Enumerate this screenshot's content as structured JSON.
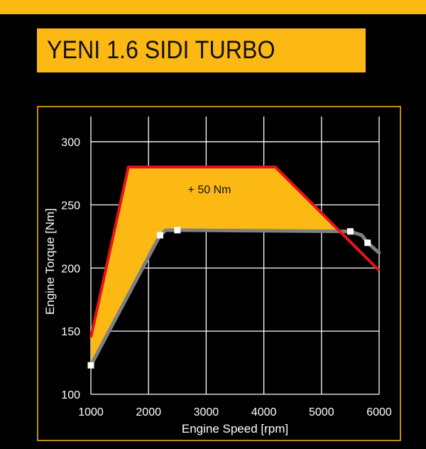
{
  "header": {
    "title": "YENI 1.6 SIDI TURBO"
  },
  "colors": {
    "background": "#000000",
    "accent": "#FDB913",
    "turbo_curve": "#E8121C",
    "base_curve": "#808080",
    "fill": "#FDB913",
    "grid": "#FFFFFF"
  },
  "chart_data": {
    "type": "line",
    "xlabel": "Engine Speed [rpm]",
    "ylabel": "Engine Torque [Nm]",
    "xlim": [
      1000,
      6000
    ],
    "ylim": [
      100,
      320
    ],
    "x_ticks": [
      "1000",
      "2000",
      "3000",
      "4000",
      "5000",
      "6000"
    ],
    "y_ticks": [
      "100",
      "150",
      "200",
      "250",
      "300"
    ],
    "grid": true,
    "annotation": "+ 50 Nm",
    "series": [
      {
        "color": "#E8121C",
        "x": [
          1000,
          1650,
          4200,
          6000
        ],
        "y": [
          145,
          280,
          280,
          198
        ]
      },
      {
        "color": "#808080",
        "markers": "square",
        "x": [
          1000,
          2200,
          2300,
          2500,
          5500,
          5700,
          5800,
          6000
        ],
        "y": [
          123,
          226,
          230,
          230,
          229,
          226,
          220,
          212
        ],
        "marker_points": [
          {
            "x": 1000,
            "y": 123
          },
          {
            "x": 2200,
            "y": 226
          },
          {
            "x": 2500,
            "y": 230
          },
          {
            "x": 5500,
            "y": 229
          },
          {
            "x": 5800,
            "y": 220
          }
        ]
      }
    ]
  }
}
